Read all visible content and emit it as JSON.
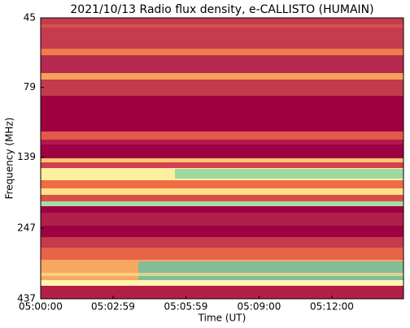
{
  "chart_data": {
    "type": "spectrogram",
    "title": "2021/10/13  Radio flux density, e-CALLISTO (HUMAIN)",
    "x_label": "Time (UT)",
    "y_label": "Frequency (MHz)",
    "xlim": [
      "05:00:00",
      "05:14:57"
    ],
    "xticks": [
      "05:00:00",
      "05:02:59",
      "05:05:59",
      "05:09:00",
      "05:12:00"
    ],
    "ylim": [
      437,
      45
    ],
    "yticks": [
      45,
      79,
      139,
      247,
      437
    ],
    "y_scale": "log"
  }
}
